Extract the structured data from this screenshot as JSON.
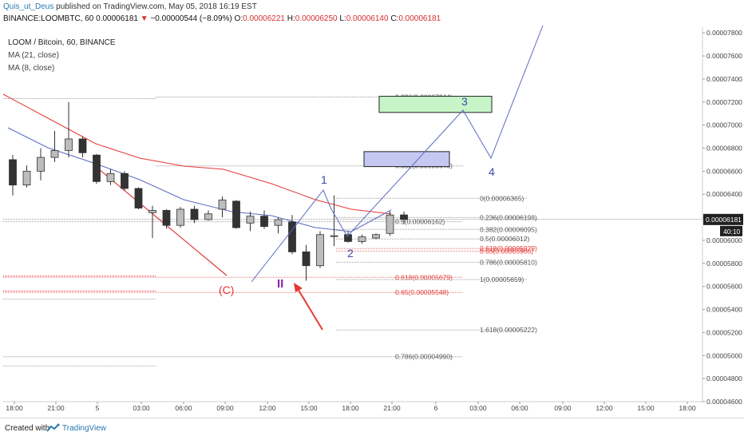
{
  "header": {
    "author": "Quis_ut_Deus",
    "published_text": "published on TradingView.com, May 05, 2018 16:19 EST"
  },
  "ohlc": {
    "symbol": "BINANCE:LOOMBTC, 60",
    "last": "0.00006181",
    "change_arrow": "▼",
    "change": "−0.00000544 (−8.09%)",
    "open_label": "O:",
    "open": "0.00006221",
    "high_label": "H:",
    "high": "0.00006250",
    "low_label": "L:",
    "low": "0.00006140",
    "close_label": "C:",
    "close": "0.00006181"
  },
  "legend": {
    "title": "LOOM / Bitcoin, 60, BINANCE",
    "ma1": "MA (21, close)",
    "ma2": "MA (8, close)"
  },
  "footer": {
    "created_with": "Created with",
    "brand": "TradingView"
  },
  "chart_data": {
    "type": "candlestick",
    "colors": {
      "bull": "#bdbdbd",
      "bear": "#333333",
      "ma21": "#e53935",
      "ma8": "#5c6bc0",
      "wave": "#5c6bc0",
      "fib_red": "#e53935",
      "fib_gray": "#555555",
      "arrow": "#e53935"
    },
    "y_axis": {
      "range": [
        4.6e-05,
        7.85e-05
      ],
      "ticks": [
        "0.00007800",
        "0.00007600",
        "0.00007400",
        "0.00007200",
        "0.00007000",
        "0.00006800",
        "0.00006600",
        "0.00006400",
        "0.00006200",
        "0.00006000",
        "0.00005800",
        "0.00005600",
        "0.00005400",
        "0.00005200",
        "0.00005000",
        "0.00004800",
        "0.00004600"
      ],
      "last_price_label": "0.00006181",
      "countdown_label": "40:10"
    },
    "x_axis": {
      "labels": [
        "18:00",
        "21:00",
        "5",
        "03:00",
        "06:00",
        "09:00",
        "12:00",
        "15:00",
        "18:00",
        "21:00",
        "6",
        "03:00",
        "06:00",
        "09:00",
        "12:00",
        "15:00",
        "18:00"
      ]
    },
    "candles": [
      {
        "o": 6.7e-05,
        "h": 6.74e-05,
        "l": 6.39e-05,
        "c": 6.48e-05
      },
      {
        "o": 6.48e-05,
        "h": 6.65e-05,
        "l": 6.46e-05,
        "c": 6.6e-05
      },
      {
        "o": 6.6e-05,
        "h": 6.8e-05,
        "l": 6.52e-05,
        "c": 6.72e-05
      },
      {
        "o": 6.72e-05,
        "h": 6.95e-05,
        "l": 6.68e-05,
        "c": 6.78e-05
      },
      {
        "o": 6.78e-05,
        "h": 7.2e-05,
        "l": 6.72e-05,
        "c": 6.88e-05
      },
      {
        "o": 6.88e-05,
        "h": 6.9e-05,
        "l": 6.72e-05,
        "c": 6.76e-05
      },
      {
        "o": 6.74e-05,
        "h": 6.75e-05,
        "l": 6.49e-05,
        "c": 6.51e-05
      },
      {
        "o": 6.51e-05,
        "h": 6.62e-05,
        "l": 6.48e-05,
        "c": 6.58e-05
      },
      {
        "o": 6.58e-05,
        "h": 6.6e-05,
        "l": 6.43e-05,
        "c": 6.45e-05
      },
      {
        "o": 6.45e-05,
        "h": 6.46e-05,
        "l": 6.27e-05,
        "c": 6.28e-05
      },
      {
        "o": 6.24e-05,
        "h": 6.3e-05,
        "l": 6.02e-05,
        "c": 6.26e-05
      },
      {
        "o": 6.26e-05,
        "h": 6.27e-05,
        "l": 6.1e-05,
        "c": 6.13e-05
      },
      {
        "o": 6.13e-05,
        "h": 6.29e-05,
        "l": 6.11e-05,
        "c": 6.27e-05
      },
      {
        "o": 6.27e-05,
        "h": 6.3e-05,
        "l": 6.15e-05,
        "c": 6.18e-05
      },
      {
        "o": 6.18e-05,
        "h": 6.26e-05,
        "l": 6.17e-05,
        "c": 6.23e-05
      },
      {
        "o": 6.27e-05,
        "h": 6.38e-05,
        "l": 6.2e-05,
        "c": 6.35e-05
      },
      {
        "o": 6.34e-05,
        "h": 6.35e-05,
        "l": 6.1e-05,
        "c": 6.11e-05
      },
      {
        "o": 6.15e-05,
        "h": 6.25e-05,
        "l": 6.08e-05,
        "c": 6.21e-05
      },
      {
        "o": 6.21e-05,
        "h": 6.26e-05,
        "l": 6.1e-05,
        "c": 6.12e-05
      },
      {
        "o": 6.13e-05,
        "h": 6.2e-05,
        "l": 6.06e-05,
        "c": 6.18e-05
      },
      {
        "o": 6.16e-05,
        "h": 6.22e-05,
        "l": 5.88e-05,
        "c": 5.9e-05
      },
      {
        "o": 5.9e-05,
        "h": 5.96e-05,
        "l": 5.65e-05,
        "c": 5.78e-05
      },
      {
        "o": 5.78e-05,
        "h": 6.08e-05,
        "l": 5.76e-05,
        "c": 6.05e-05
      },
      {
        "o": 6.04e-05,
        "h": 6.39e-05,
        "l": 5.95e-05,
        "c": 6.04e-05
      },
      {
        "o": 6.05e-05,
        "h": 6.08e-05,
        "l": 5.98e-05,
        "c": 5.99e-05
      },
      {
        "o": 5.99e-05,
        "h": 6.05e-05,
        "l": 5.97e-05,
        "c": 6.03e-05
      },
      {
        "o": 6.02e-05,
        "h": 6.06e-05,
        "l": 6.01e-05,
        "c": 6.05e-05
      },
      {
        "o": 6.06e-05,
        "h": 6.25e-05,
        "l": 6.04e-05,
        "c": 6.22e-05
      },
      {
        "o": 6.221e-05,
        "h": 6.25e-05,
        "l": 6.14e-05,
        "c": 6.181e-05
      }
    ],
    "fib_right": [
      {
        "label": "0(0.00006365)",
        "color": "#555555"
      },
      {
        "label": "0.236(0.00006198)",
        "color": "#555555"
      },
      {
        "label": "0.382(0.00006095)",
        "color": "#555555"
      },
      {
        "label": "0.5(0.00006012)",
        "color": "#555555"
      },
      {
        "label": "0.618(0.00005929)",
        "color": "#e53935"
      },
      {
        "label": "0.65(0.00005906)",
        "color": "#e53935"
      },
      {
        "label": "0.786(0.00005810)",
        "color": "#555555"
      },
      {
        "label": "1(0.00005659)",
        "color": "#555555"
      },
      {
        "label": "1.618(0.00005222)",
        "color": "#555555"
      }
    ],
    "fib_left": [
      {
        "label": "0.236(0.00007244)",
        "color": "#555555"
      },
      {
        "label": "0.382(0.00006646)",
        "color": "#555555"
      },
      {
        "label": "0.5(0.00006162)",
        "color": "#555555"
      },
      {
        "label": "0.618(0.00005679)",
        "color": "#e53935"
      },
      {
        "label": "0.65(0.00005548)",
        "color": "#e53935"
      },
      {
        "label": "0.786(0.00004990)",
        "color": "#555555"
      }
    ],
    "wave_labels": {
      "w1": "1",
      "w2": "2",
      "w3": "3",
      "w4": "4",
      "wII": "II",
      "wC": "(C)"
    }
  }
}
